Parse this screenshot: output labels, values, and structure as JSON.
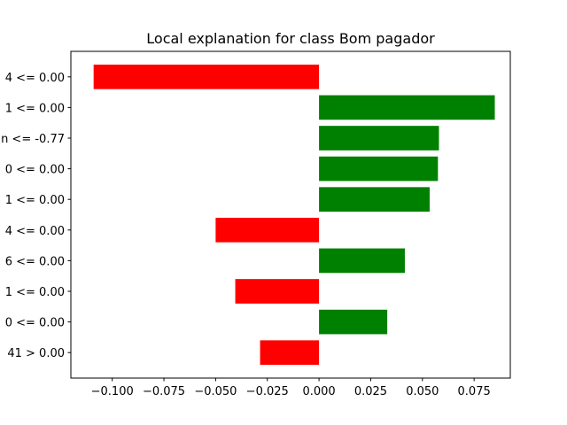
{
  "chart_data": {
    "type": "bar",
    "orientation": "horizontal",
    "title": "Local explanation for class Bom pagador",
    "xlabel": "",
    "ylabel": "",
    "xlim": [
      -0.12,
      0.0925
    ],
    "xticks": [
      -0.1,
      -0.075,
      -0.05,
      -0.025,
      0.0,
      0.025,
      0.05,
      0.075
    ],
    "xtick_labels": [
      "−0.100",
      "−0.075",
      "−0.050",
      "−0.025",
      "0.000",
      "0.025",
      "0.050",
      "0.075"
    ],
    "categories": [
      "4 <= 0.00",
      "1 <= 0.00",
      "n <= -0.77",
      "0 <= 0.00",
      "1 <= 0.00",
      "4 <= 0.00",
      "6 <= 0.00",
      "1 <= 0.00",
      "0 <= 0.00",
      "41 > 0.00"
    ],
    "values": [
      -0.109,
      0.085,
      0.058,
      0.0575,
      0.0535,
      -0.05,
      0.0415,
      -0.0405,
      0.033,
      -0.0285
    ],
    "grid": false,
    "colors": {
      "positive": "#008000",
      "negative": "#ff0000"
    }
  }
}
